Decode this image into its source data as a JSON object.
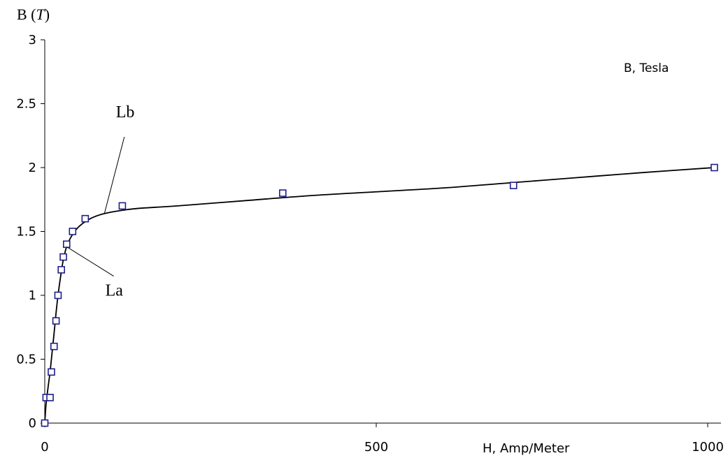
{
  "chart_data": {
    "type": "scatter",
    "title": "",
    "ylabel": "B (T)",
    "ylabel_prefix": "B (",
    "ylabel_var": "T",
    "ylabel_suffix": ")",
    "xlabel": "H, Amp/Meter",
    "xlim": [
      0,
      1020
    ],
    "ylim": [
      0,
      3
    ],
    "x_ticks": [
      {
        "value": 0,
        "label": "0"
      },
      {
        "value": 500,
        "label": "500"
      },
      {
        "value": 1000,
        "label": "1000"
      }
    ],
    "y_ticks": [
      {
        "value": 0,
        "label": "0"
      },
      {
        "value": 0.5,
        "label": "0.5"
      },
      {
        "value": 1,
        "label": "1"
      },
      {
        "value": 1.5,
        "label": "1.5"
      },
      {
        "value": 2,
        "label": "2"
      },
      {
        "value": 2.5,
        "label": "2.5"
      },
      {
        "value": 3,
        "label": "3"
      }
    ],
    "grid": false,
    "legend": {
      "position": "top-right",
      "label": "B, Tesla"
    },
    "series": [
      {
        "name": "B, Tesla",
        "marker": "square",
        "color": "#1f1f8c",
        "points": [
          [
            0,
            0
          ],
          [
            2,
            0.2
          ],
          [
            8,
            0.2
          ],
          [
            10,
            0.4
          ],
          [
            14,
            0.6
          ],
          [
            17,
            0.8
          ],
          [
            20,
            1.0
          ],
          [
            25,
            1.2
          ],
          [
            28,
            1.3
          ],
          [
            33,
            1.4
          ],
          [
            42,
            1.5
          ],
          [
            61,
            1.6
          ],
          [
            117,
            1.7
          ],
          [
            359,
            1.8
          ],
          [
            707,
            1.86
          ],
          [
            1010,
            2.0
          ]
        ]
      }
    ],
    "fit_curve": {
      "color": "#000000",
      "points": [
        [
          0,
          0
        ],
        [
          2,
          0.15
        ],
        [
          5,
          0.28
        ],
        [
          8,
          0.4
        ],
        [
          11,
          0.55
        ],
        [
          14,
          0.7
        ],
        [
          17,
          0.86
        ],
        [
          20,
          1.0
        ],
        [
          24,
          1.15
        ],
        [
          28,
          1.28
        ],
        [
          33,
          1.38
        ],
        [
          40,
          1.46
        ],
        [
          50,
          1.53
        ],
        [
          62,
          1.58
        ],
        [
          75,
          1.615
        ],
        [
          90,
          1.64
        ],
        [
          110,
          1.66
        ],
        [
          140,
          1.68
        ],
        [
          200,
          1.7
        ],
        [
          300,
          1.74
        ],
        [
          400,
          1.78
        ],
        [
          500,
          1.81
        ],
        [
          600,
          1.84
        ],
        [
          700,
          1.88
        ],
        [
          800,
          1.92
        ],
        [
          900,
          1.96
        ],
        [
          1010,
          2.0
        ]
      ]
    },
    "annotations": [
      {
        "text": "Lb",
        "point": [
          90,
          1.64
        ],
        "label_pos": [
          120,
          2.24
        ]
      },
      {
        "text": "La",
        "point": [
          33,
          1.38
        ],
        "label_pos": [
          104,
          1.15
        ]
      }
    ]
  }
}
